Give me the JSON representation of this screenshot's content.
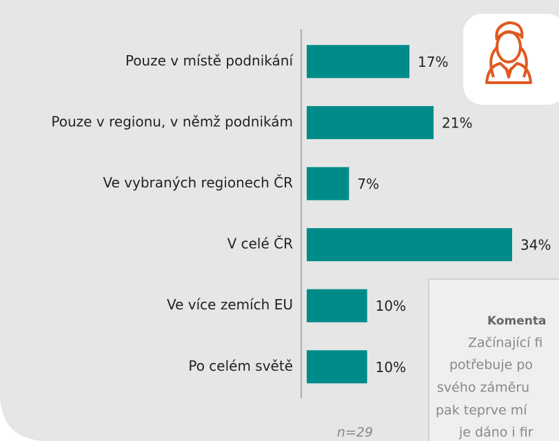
{
  "chart_data": {
    "type": "bar",
    "orientation": "horizontal",
    "categories": [
      "Pouze v místě podnikání",
      "Pouze v regionu, v němž podnikám",
      "Ve vybraných regionech ČR",
      "V celé ČR",
      "Ve více zemích EU",
      "Po celém světě"
    ],
    "values": [
      17,
      21,
      7,
      34,
      10,
      10
    ],
    "value_labels": [
      "17%",
      "21%",
      "7%",
      "34%",
      "10%",
      "10%"
    ],
    "color": "#008b8b",
    "xlim": [
      0,
      34
    ],
    "note": "n=29",
    "comment": {
      "title": "Komenta",
      "lines": [
        "Začínající fi",
        "potřebuje po",
        "svého záměru",
        "pak teprve mí",
        "je dáno i fir"
      ]
    }
  }
}
